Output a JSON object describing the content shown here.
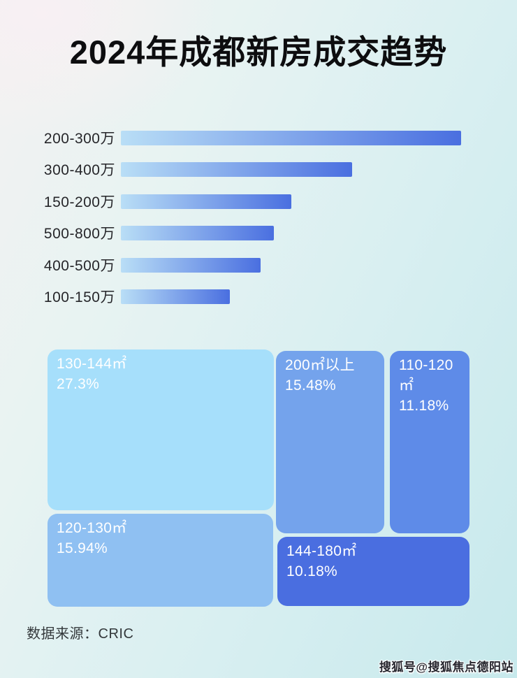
{
  "page": {
    "title": "2024年成都新房成交趋势",
    "source_note": "数据来源：CRIC",
    "watermark": "搜狐号@搜狐焦点德阳站"
  },
  "colors": {
    "bar_gradient_start": "#b9def6",
    "bar_gradient_end": "#4a6fe0",
    "title_color": "#0d0d0f",
    "tile_text": "#ffffff"
  },
  "chart_data": [
    {
      "type": "bar",
      "orientation": "horizontal",
      "title": "2024年成都新房成交趋势",
      "categories": [
        "200-300万",
        "300-400万",
        "150-200万",
        "500-800万",
        "400-500万",
        "100-150万"
      ],
      "values": [
        100,
        68,
        50,
        45,
        41,
        32
      ],
      "value_note": "relative bar lengths (no numeric data labels shown in image), longest bar = 100",
      "xlabel": "",
      "ylabel": "",
      "grid": false,
      "legend": false,
      "bar_gradient": [
        "#b9def6",
        "#4a6fe0"
      ]
    },
    {
      "type": "treemap",
      "title": "",
      "items": [
        {
          "label": "130-144㎡",
          "value": 27.3,
          "value_text": "27.3%",
          "color": "#a6dffb"
        },
        {
          "label": "120-130㎡",
          "value": 15.94,
          "value_text": "15.94%",
          "color": "#8fc0f2"
        },
        {
          "label": "200㎡以上",
          "value": 15.48,
          "value_text": "15.48%",
          "color": "#74a3ec"
        },
        {
          "label": "110-120㎡",
          "value": 11.18,
          "value_text": "11.18%",
          "color": "#5e8be8"
        },
        {
          "label": "144-180㎡",
          "value": 10.18,
          "value_text": "10.18%",
          "color": "#4a6ee0"
        }
      ]
    }
  ]
}
